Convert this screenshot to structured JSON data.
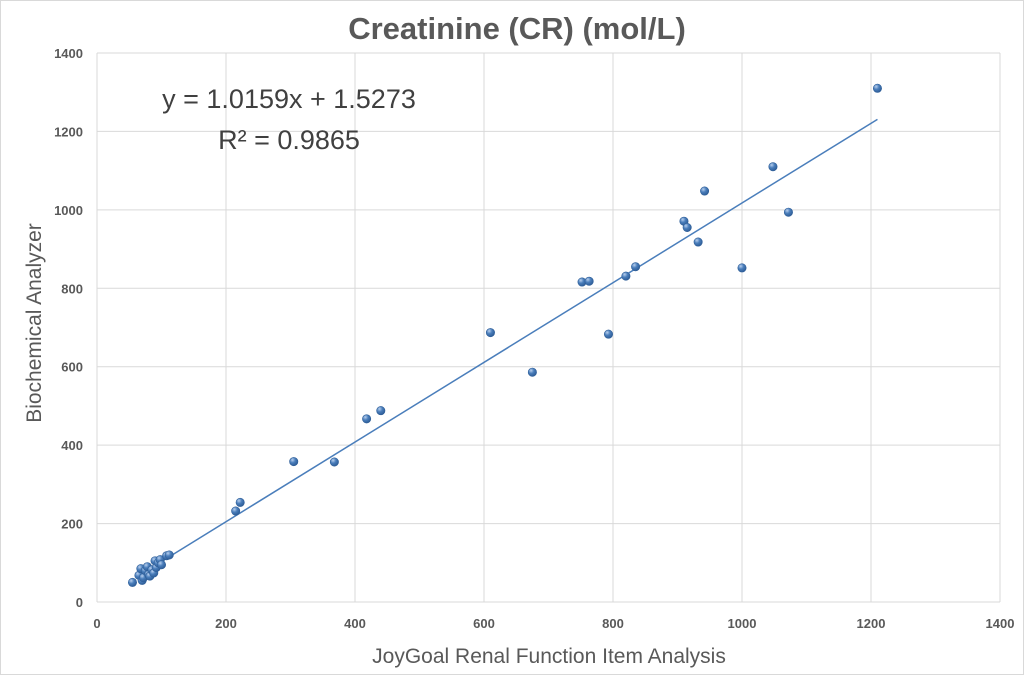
{
  "chart_data": {
    "type": "scatter",
    "title": "Creatinine (CR) (mol/L)",
    "xlabel": "JoyGoal Renal Function Item Analysis",
    "ylabel": "Biochemical  Analyzer",
    "xlim": [
      0,
      1400
    ],
    "ylim": [
      0,
      1400
    ],
    "x_ticks": [
      0,
      200,
      400,
      600,
      800,
      1000,
      1200,
      1400
    ],
    "y_ticks": [
      0,
      200,
      400,
      600,
      800,
      1000,
      1200,
      1400
    ],
    "grid": true,
    "legend": "none",
    "marker_color": "#4a7ebb",
    "trendline": {
      "type": "linear",
      "slope": 1.0159,
      "intercept": 1.5273,
      "r_squared": 0.9865,
      "x_range": [
        103,
        1210
      ],
      "equation_label": "y = 1.0159x + 1.5273",
      "r2_label": "R² = 0.9865",
      "color": "#4a7ebb"
    },
    "series": [
      {
        "points": [
          [
            55,
            50
          ],
          [
            65,
            68
          ],
          [
            68,
            85
          ],
          [
            70,
            55
          ],
          [
            72,
            62
          ],
          [
            75,
            80
          ],
          [
            78,
            90
          ],
          [
            80,
            70
          ],
          [
            82,
            66
          ],
          [
            85,
            82
          ],
          [
            88,
            74
          ],
          [
            90,
            105
          ],
          [
            92,
            88
          ],
          [
            95,
            100
          ],
          [
            98,
            108
          ],
          [
            100,
            95
          ],
          [
            108,
            118
          ],
          [
            112,
            120
          ],
          [
            215,
            232
          ],
          [
            222,
            254
          ],
          [
            305,
            358
          ],
          [
            368,
            357
          ],
          [
            418,
            467
          ],
          [
            440,
            488
          ],
          [
            610,
            687
          ],
          [
            675,
            586
          ],
          [
            752,
            816
          ],
          [
            763,
            818
          ],
          [
            793,
            683
          ],
          [
            820,
            831
          ],
          [
            835,
            855
          ],
          [
            910,
            971
          ],
          [
            915,
            955
          ],
          [
            932,
            918
          ],
          [
            942,
            1048
          ],
          [
            1000,
            852
          ],
          [
            1048,
            1110
          ],
          [
            1072,
            994
          ],
          [
            1210,
            1310
          ]
        ]
      }
    ]
  }
}
